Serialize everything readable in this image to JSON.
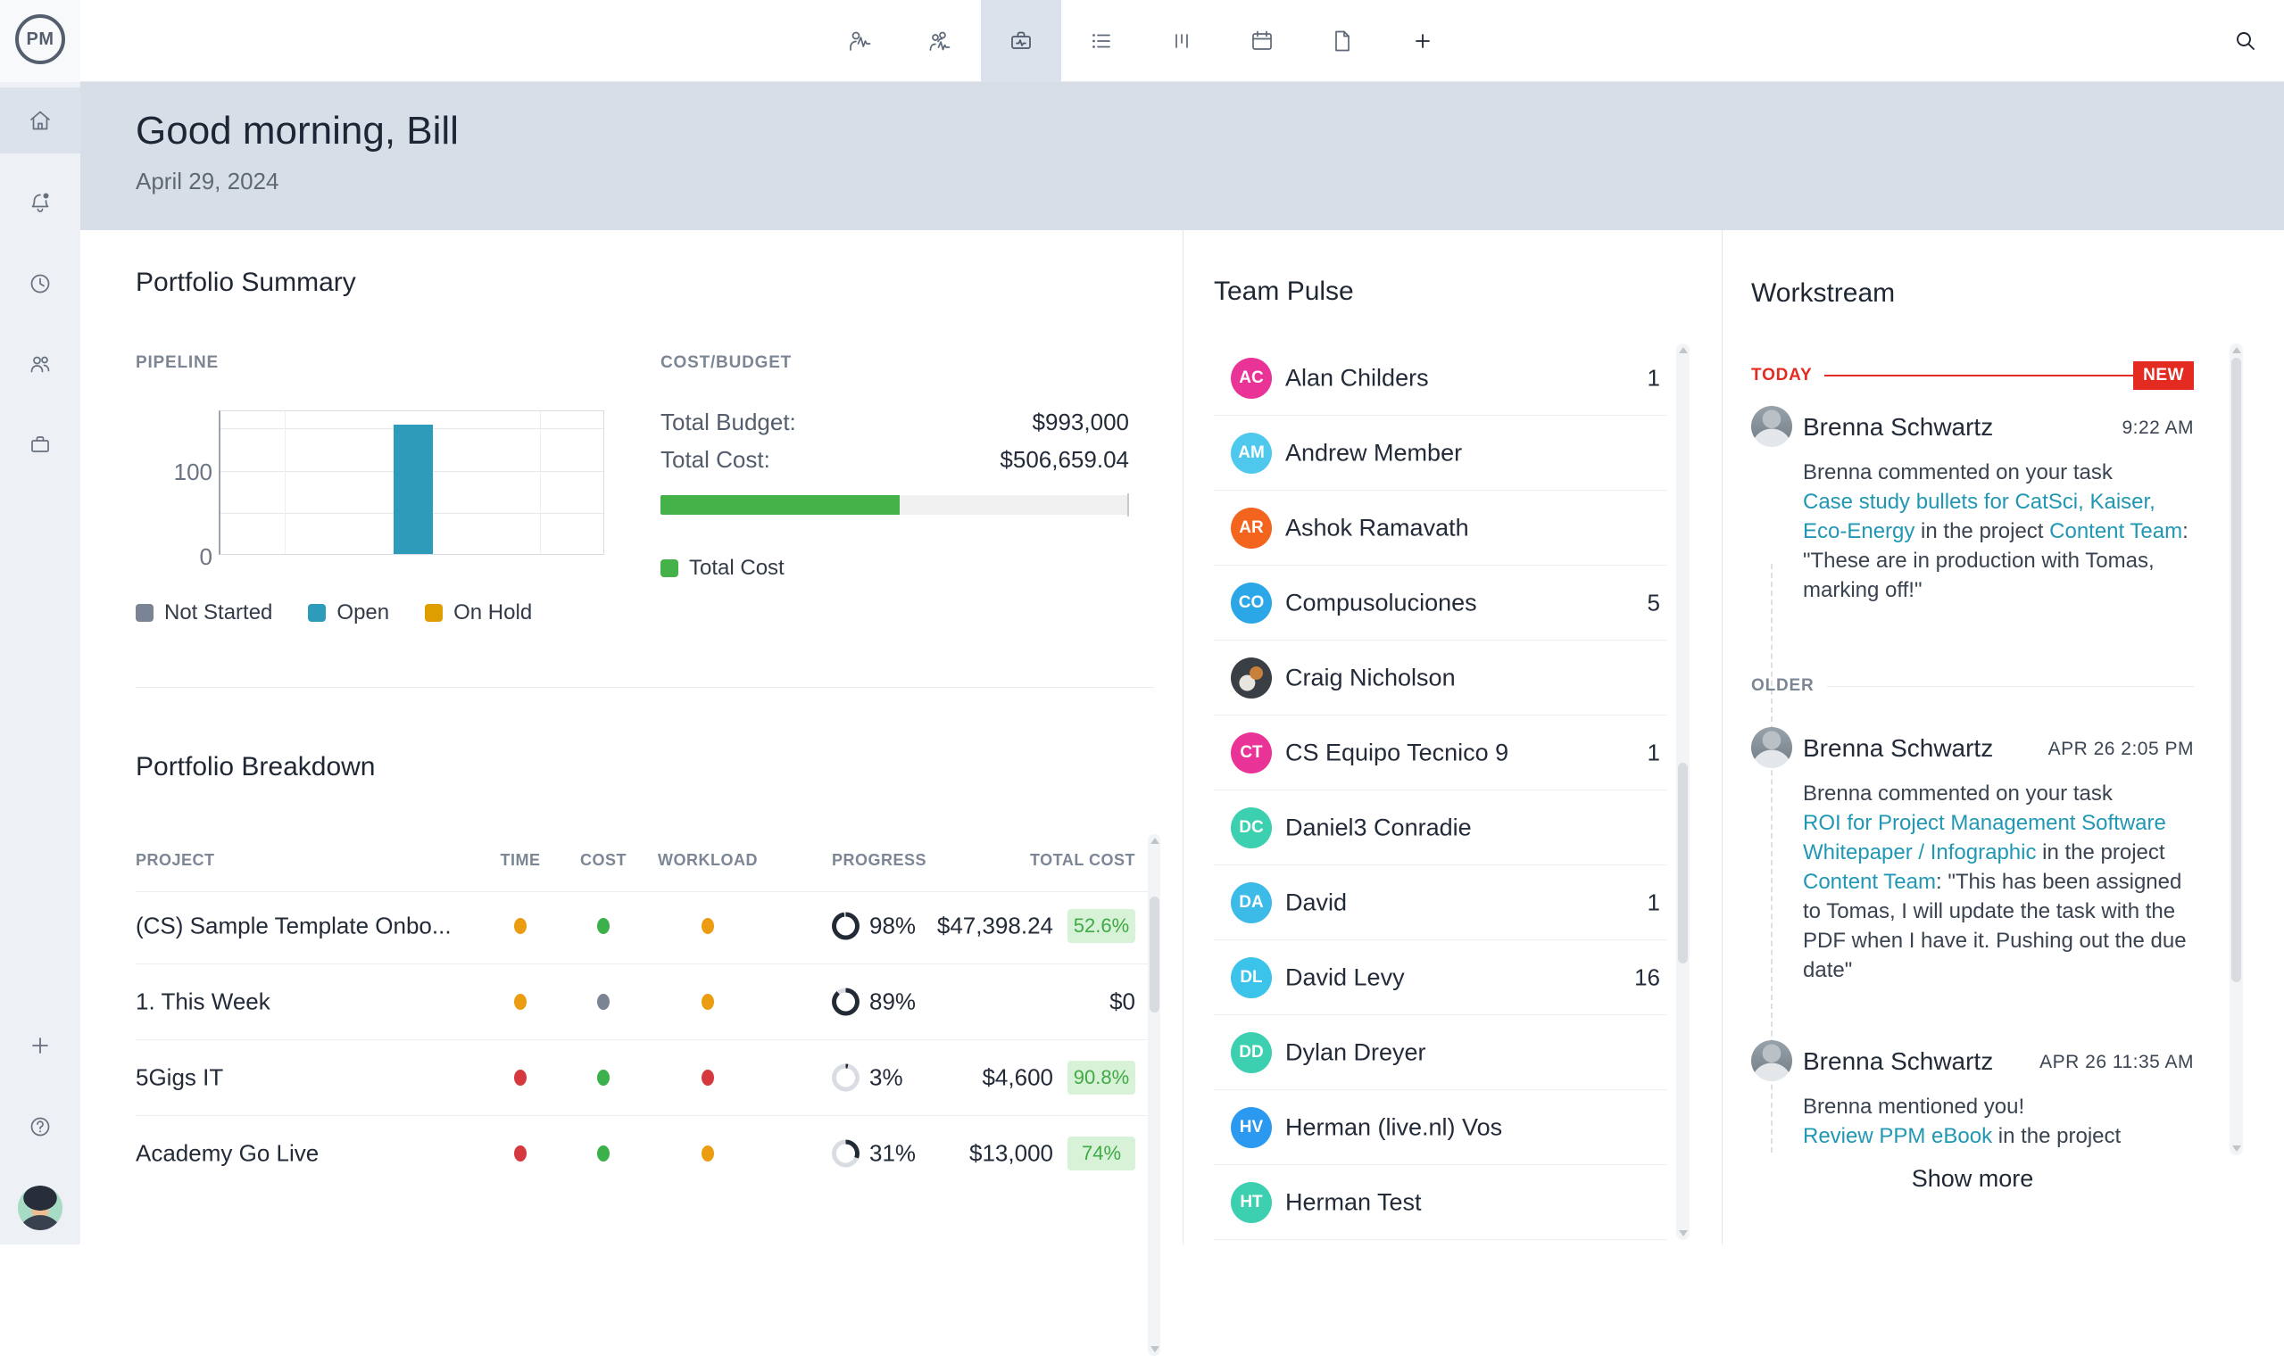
{
  "app": {
    "logo": "PM"
  },
  "topbar": {
    "tabs": [
      "person-pulse-icon",
      "team-pulse-icon",
      "portfolio-pulse-icon",
      "task-list-icon",
      "workload-columns-icon",
      "calendar-icon",
      "file-icon",
      "add-tab-icon"
    ],
    "active_tab_index": 2,
    "search_icon": "search"
  },
  "header": {
    "greeting": "Good morning, Bill",
    "date": "April 29, 2024"
  },
  "chart_data": {
    "type": "bar",
    "title": "PIPELINE",
    "categories": [
      "Not Started",
      "Open",
      "On Hold"
    ],
    "values": [
      0,
      153,
      0
    ],
    "xlabel": "",
    "ylabel": "",
    "yticks": [
      0,
      100
    ],
    "ylim": [
      0,
      170
    ],
    "gridline_step": 50,
    "grid": true,
    "legend_position": "bottom",
    "bar_color": "#2d9cba"
  },
  "portfolio_summary": {
    "title": "Portfolio Summary",
    "pipeline_label": "PIPELINE",
    "y_tick_top": "100",
    "y_tick_bottom": "0",
    "legend": [
      {
        "label": "Not Started",
        "color": "#7b8494"
      },
      {
        "label": "Open",
        "color": "#2d9cba"
      },
      {
        "label": "On Hold",
        "color": "#df9e00"
      }
    ],
    "cost_budget": {
      "label": "COST/BUDGET",
      "total_budget_label": "Total Budget:",
      "total_budget_value": "$993,000",
      "total_cost_label": "Total Cost:",
      "total_cost_value": "$506,659.04",
      "used_pct": 51,
      "bar_color": "#45b149",
      "legend_label": "Total Cost",
      "legend_color": "#45b149"
    }
  },
  "portfolio_breakdown": {
    "title": "Portfolio Breakdown",
    "headers": [
      "PROJECT",
      "TIME",
      "COST",
      "WORKLOAD",
      "PROGRESS",
      "TOTAL COST"
    ],
    "rows": [
      {
        "project": "(CS) Sample Template Onbo...",
        "time_color": "#ec9c10",
        "cost_color": "#3cb14b",
        "workload_color": "#ec9c10",
        "progress": {
          "pct": 98,
          "label": "98%"
        },
        "total_cost": "$47,398.24",
        "badge": "52.6%"
      },
      {
        "project": "1. This Week",
        "time_color": "#ec9c10",
        "cost_color": "#7b8494",
        "workload_color": "#ec9c10",
        "progress": {
          "pct": 89,
          "label": "89%"
        },
        "total_cost": "$0",
        "badge": ""
      },
      {
        "project": "5Gigs IT",
        "time_color": "#d6383f",
        "cost_color": "#3cb14b",
        "workload_color": "#d6383f",
        "progress": {
          "pct": 3,
          "label": "3%"
        },
        "total_cost": "$4,600",
        "badge": "90.8%"
      },
      {
        "project": "Academy Go Live",
        "time_color": "#d6383f",
        "cost_color": "#3cb14b",
        "workload_color": "#ec9c10",
        "progress": {
          "pct": 31,
          "label": "31%"
        },
        "total_cost": "$13,000",
        "badge": "74%"
      }
    ]
  },
  "team_pulse": {
    "title": "Team Pulse",
    "members": [
      {
        "initials": "AC",
        "name": "Alan Childers",
        "count": "1",
        "avatar_color": "#ea3397"
      },
      {
        "initials": "AM",
        "name": "Andrew Member",
        "count": "",
        "avatar_color": "#4ec9ed"
      },
      {
        "initials": "AR",
        "name": "Ashok Ramavath",
        "count": "",
        "avatar_color": "#f3641e"
      },
      {
        "initials": "CO",
        "name": "Compusoluciones",
        "count": "5",
        "avatar_color": "#2ba7e8"
      },
      {
        "initials": "",
        "name": "Craig Nicholson",
        "count": "",
        "avatar_color": ""
      },
      {
        "initials": "CT",
        "name": "CS Equipo Tecnico 9",
        "count": "1",
        "avatar_color": "#ea3397"
      },
      {
        "initials": "DC",
        "name": "Daniel3 Conradie",
        "count": "",
        "avatar_color": "#3dd0b0"
      },
      {
        "initials": "DA",
        "name": "David",
        "count": "1",
        "avatar_color": "#3cbbe8"
      },
      {
        "initials": "DL",
        "name": "David Levy",
        "count": "16",
        "avatar_color": "#3cc3ea"
      },
      {
        "initials": "DD",
        "name": "Dylan Dreyer",
        "count": "",
        "avatar_color": "#3dd0b0"
      },
      {
        "initials": "HV",
        "name": "Herman (live.nl) Vos",
        "count": "",
        "avatar_color": "#2b99f0"
      },
      {
        "initials": "HT",
        "name": "Herman Test",
        "count": "",
        "avatar_color": "#3dd0b0"
      }
    ]
  },
  "workstream": {
    "title": "Workstream",
    "today_label": "TODAY",
    "new_badge": "NEW",
    "older_label": "OLDER",
    "entries": [
      {
        "author": "Brenna Schwartz",
        "time": "9:22 AM",
        "segments": [
          {
            "text": "Brenna commented on your task "
          },
          {
            "text": "Case study bullets for CatSci, Kaiser, Eco-Energy"
          },
          {
            "text": " in the project "
          },
          {
            "text": "Content Team"
          },
          {
            "text": ": \"These are in production with Tomas, marking off!\""
          }
        ]
      },
      {
        "author": "Brenna Schwartz",
        "time": "APR 26 2:05 PM",
        "segments": [
          {
            "text": "Brenna commented on your task "
          },
          {
            "text": "ROI for Project Management Software Whitepaper / Infographic"
          },
          {
            "text": " in the project "
          },
          {
            "text": "Content Team"
          },
          {
            "text": ": \"This has been assigned to Tomas, I will update the task with the PDF when I have it. Pushing out the due date\""
          }
        ]
      },
      {
        "author": "Brenna Schwartz",
        "time": "APR 26 11:35 AM",
        "intro": "Brenna mentioned you!",
        "segments": [
          {
            "text": "Review PPM eBook"
          },
          {
            "text": " in the project"
          }
        ]
      }
    ],
    "show_more": "Show more"
  }
}
